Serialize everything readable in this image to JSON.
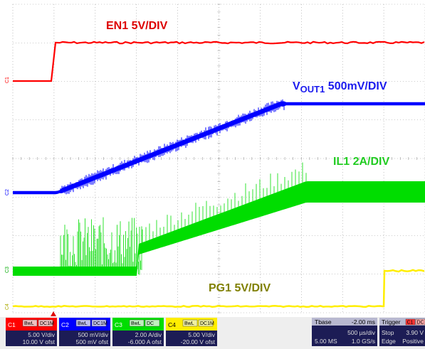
{
  "labels": {
    "en1": "EN1 5V/DIV",
    "vout_main": "V",
    "vout_sub": "OUT1",
    "vout_scale": " 500mV/DIV",
    "il1": "IL1 2A/DIV",
    "pg1": "PG1 5V/DIV"
  },
  "markers": {
    "c1": "C1",
    "c2": "C2",
    "c3": "C3",
    "c4": "C4"
  },
  "colors": {
    "ch1": "#ff0000",
    "ch2": "#0000ff",
    "ch3": "#00dd00",
    "ch4": "#ffee00",
    "grid": "#999999",
    "en1_label": "#dd0000",
    "vout_label": "#1a1aee",
    "il1_label": "#22cc22",
    "pg1_label": "#808000",
    "panel_bg": "#dcdcdc"
  },
  "channels": [
    {
      "name": "C1",
      "chips": [
        "BwL",
        "DC1M"
      ],
      "scale": "5.00 V/div",
      "offset": "10.00 V ofst"
    },
    {
      "name": "C2",
      "chips": [
        "BwL",
        "DC1M"
      ],
      "scale": "500 mV/div",
      "offset": "500 mV ofst"
    },
    {
      "name": "C3",
      "chips": [
        "BwL",
        "DC"
      ],
      "scale": "2.00 A/div",
      "offset": "-6.000 A ofst"
    },
    {
      "name": "C4",
      "chips": [
        "BwL",
        "DC1M"
      ],
      "scale": "5.00 V/div",
      "offset": "-20.00 V ofst"
    }
  ],
  "timebase": {
    "title": "Tbase",
    "delay": "-2.00 ms",
    "per_div": "500 µs/div",
    "samples": "5.00 MS",
    "rate": "1.0 GS/s"
  },
  "trigger": {
    "title": "Trigger",
    "chips": [
      "C1",
      "DC"
    ],
    "mode": "Stop",
    "level": "3.90 V",
    "type": "Edge",
    "slope": "Positive"
  }
}
